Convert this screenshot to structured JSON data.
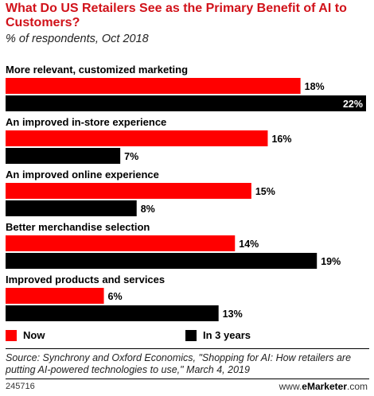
{
  "header": {
    "title": "What Do US Retailers See as the Primary Benefit of AI to Customers?",
    "subtitle": "% of respondents, Oct 2018"
  },
  "chart_data": {
    "type": "bar",
    "orientation": "horizontal",
    "title": "What Do US Retailers See as the Primary Benefit of AI to Customers?",
    "subtitle": "% of respondents, Oct 2018",
    "categories": [
      "More relevant, customized marketing",
      "An improved in-store experience",
      "An improved online experience",
      "Better merchandise selection",
      "Improved products and services"
    ],
    "series": [
      {
        "name": "Now",
        "color": "#ff0000",
        "values": [
          18,
          16,
          15,
          14,
          6
        ],
        "labels": [
          "18%",
          "16%",
          "15%",
          "14%",
          "6%"
        ]
      },
      {
        "name": "In 3 years",
        "color": "#000000",
        "values": [
          22,
          7,
          8,
          19,
          13
        ],
        "labels": [
          "22%",
          "7%",
          "8%",
          "19%",
          "13%"
        ]
      }
    ],
    "xlim": [
      0,
      22
    ],
    "grid": false,
    "legend_position": "bottom-left"
  },
  "legend": {
    "now": "Now",
    "in3years": "In 3 years"
  },
  "source": "Source: Synchrony and Oxford Economics, \"Shopping for AI: How retailers are putting AI-powered technologies to use,\" March 4, 2019",
  "footer": {
    "id": "245716",
    "brand_prefix": "www.",
    "brand_bold": "eMarketer",
    "brand_suffix": ".com"
  }
}
